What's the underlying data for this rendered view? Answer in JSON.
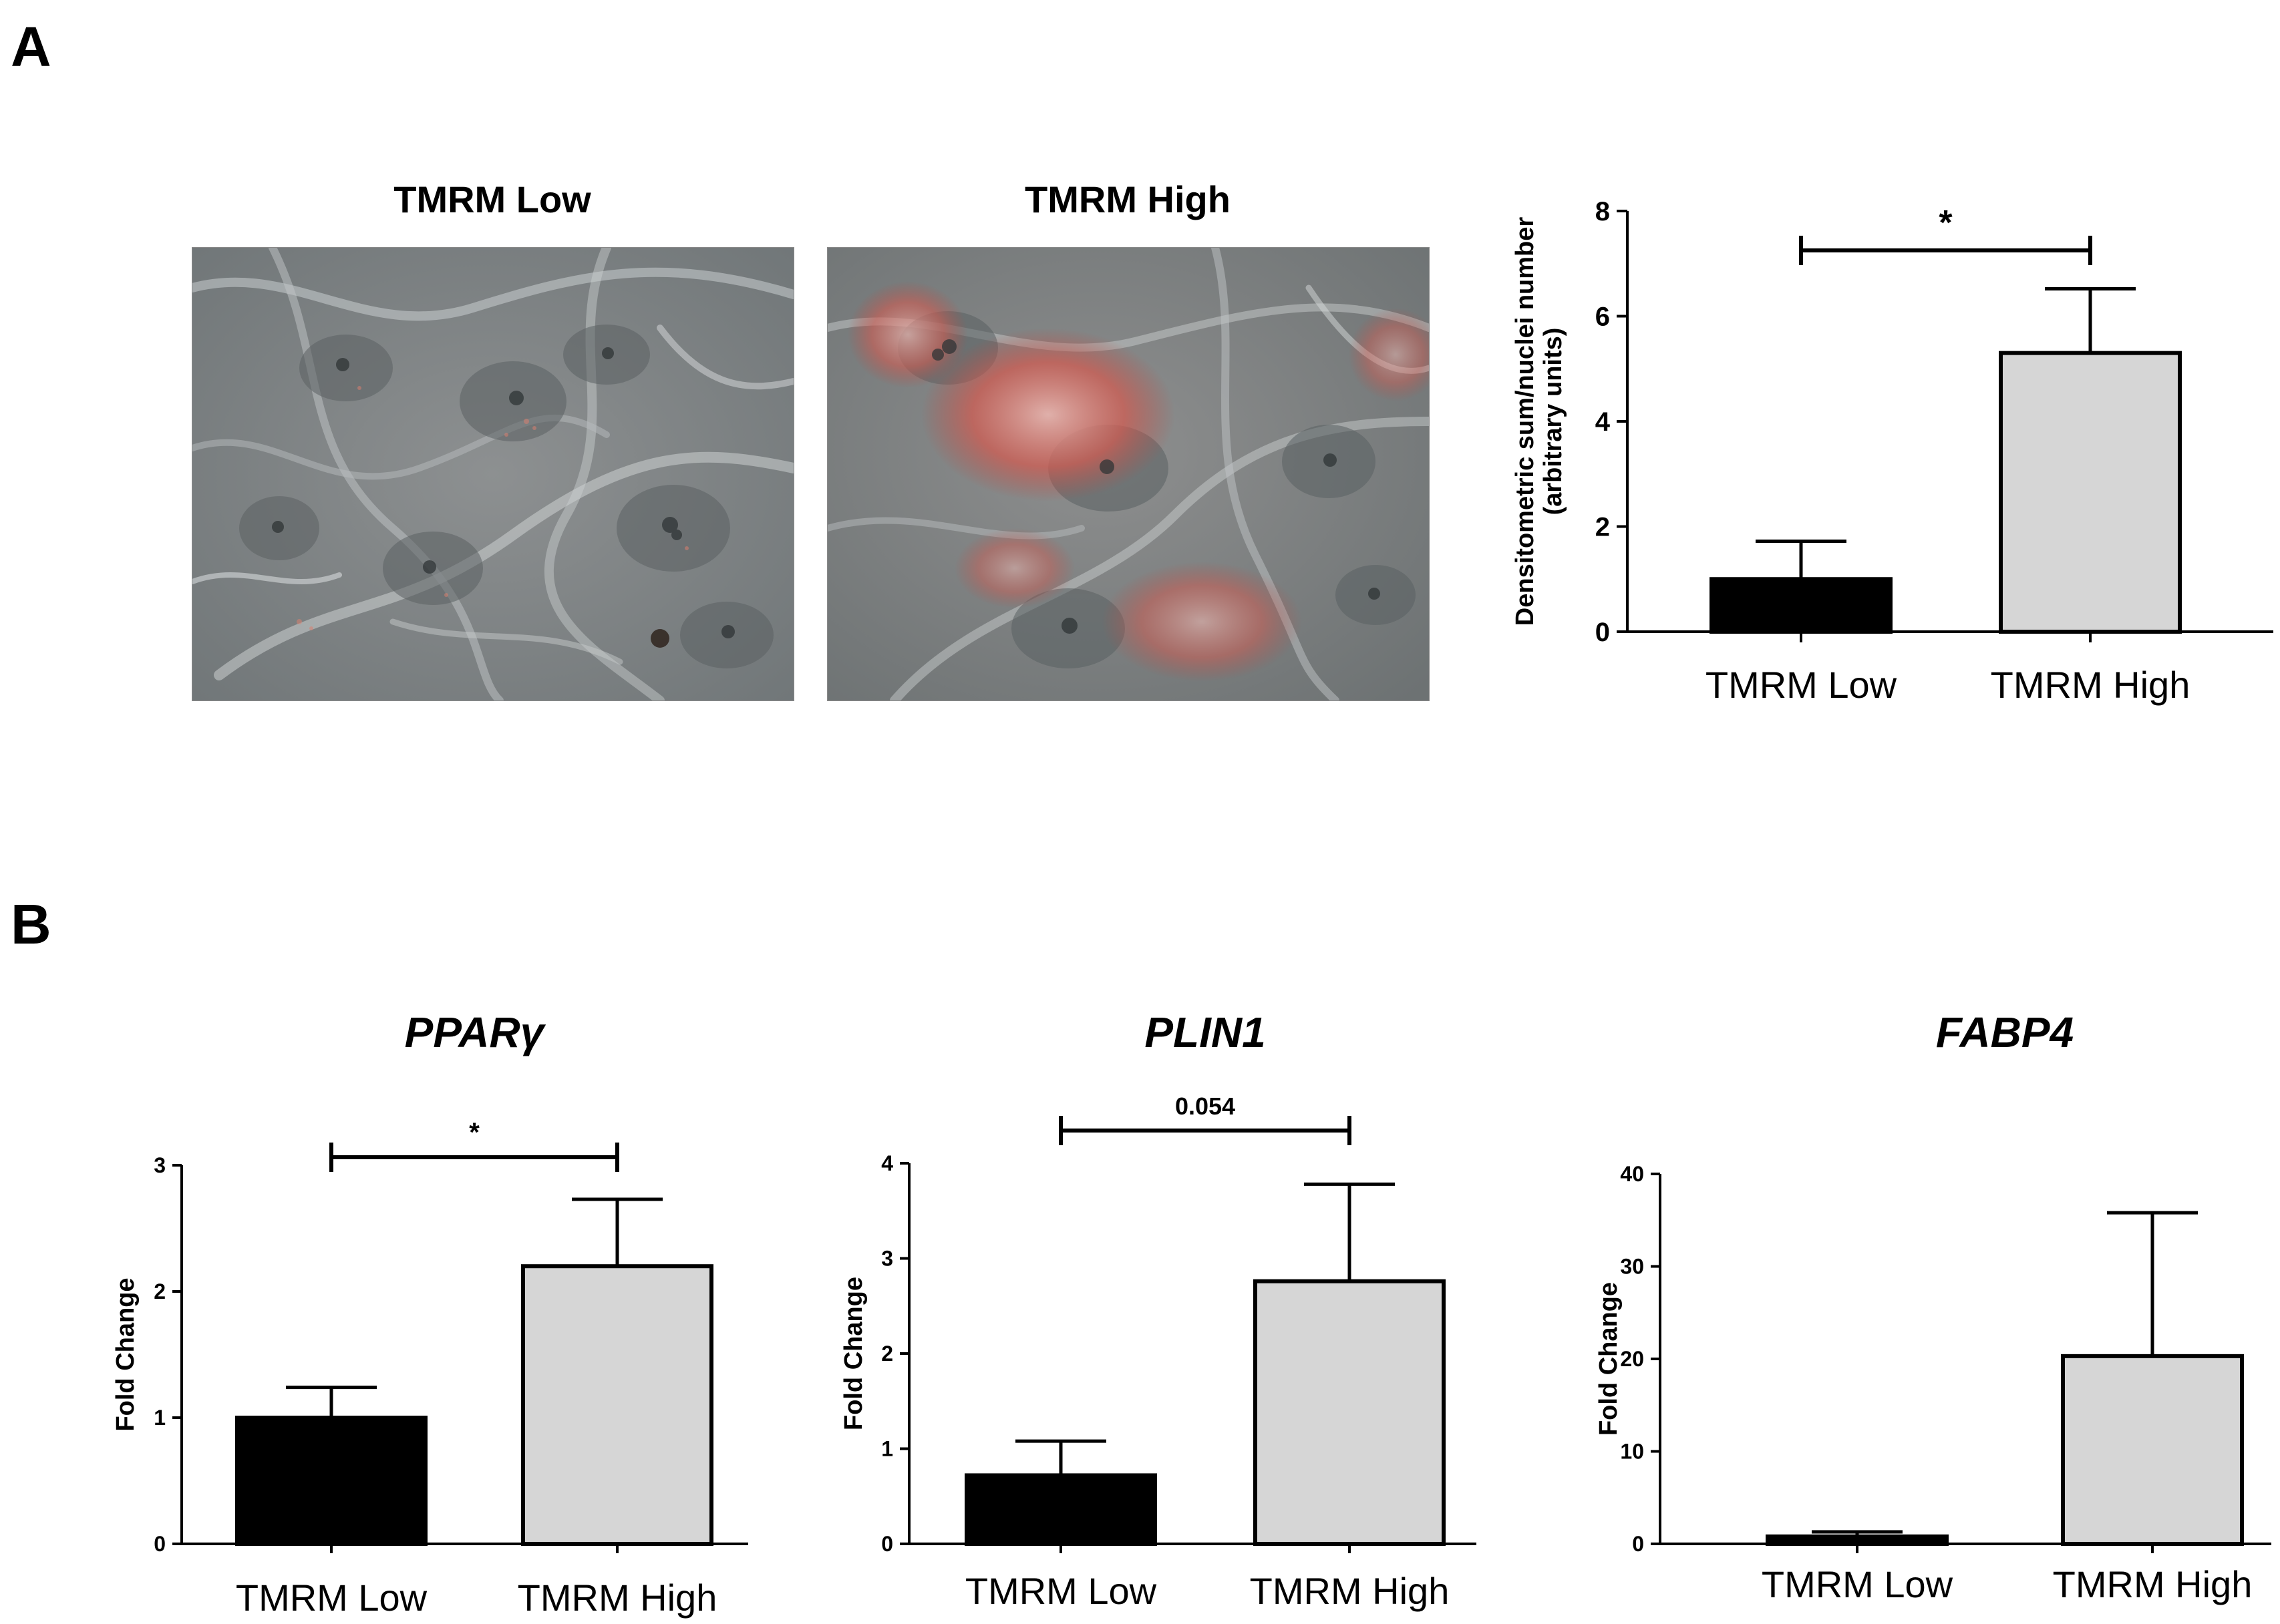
{
  "panels": {
    "a_label": "A",
    "b_label": "B"
  },
  "images": {
    "low_caption": "TMRM Low",
    "high_caption": "TMRM High"
  },
  "colors": {
    "low_bar": "#000000",
    "high_bar": "#d6d6d6",
    "axis": "#000000"
  },
  "chart_data": [
    {
      "id": "densitometry",
      "type": "bar",
      "title": "",
      "ylabel": "Densitometric sum/nuclei number\n(arbitrary units)",
      "categories": [
        "TMRM Low",
        "TMRM High"
      ],
      "values": [
        1.0,
        5.3
      ],
      "errors": [
        0.72,
        1.22
      ],
      "ylim": [
        0,
        8
      ],
      "yticks": [
        0,
        2,
        4,
        6,
        8
      ],
      "significance": "*"
    },
    {
      "id": "ppar",
      "type": "bar",
      "title": "PPARγ",
      "ylabel": "Fold Change",
      "categories": [
        "TMRM Low",
        "TMRM High"
      ],
      "values": [
        1.0,
        2.2
      ],
      "errors": [
        0.24,
        0.53
      ],
      "ylim": [
        0,
        3
      ],
      "yticks": [
        0,
        1,
        2,
        3
      ],
      "significance": "*"
    },
    {
      "id": "plin1",
      "type": "bar",
      "title": "PLIN1",
      "ylabel": "Fold Change",
      "categories": [
        "TMRM Low",
        "TMRM High"
      ],
      "values": [
        0.72,
        2.76
      ],
      "errors": [
        0.36,
        1.02
      ],
      "ylim": [
        0,
        4
      ],
      "yticks": [
        0,
        1,
        2,
        3,
        4
      ],
      "significance": "0.054"
    },
    {
      "id": "fabp4",
      "type": "bar",
      "title": "FABP4",
      "ylabel": "Fold Change",
      "categories": [
        "TMRM Low",
        "TMRM High"
      ],
      "values": [
        0.8,
        20.3
      ],
      "errors": [
        0.5,
        15.5
      ],
      "ylim": [
        0,
        40
      ],
      "yticks": [
        0,
        10,
        20,
        30,
        40
      ],
      "significance": ""
    }
  ]
}
